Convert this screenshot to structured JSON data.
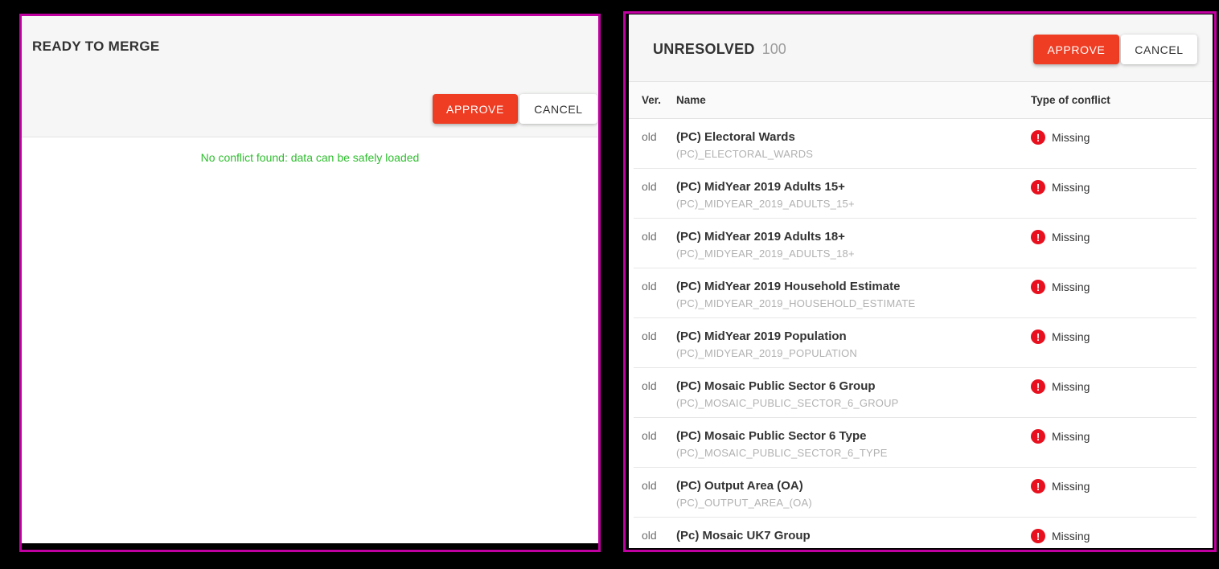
{
  "colors": {
    "annotation_border": "#c000a0",
    "approve_red": "#ee3d23",
    "error_red": "#e8101e",
    "success_green": "#2dbd2d"
  },
  "left_panel": {
    "title": "READY TO MERGE",
    "approve_label": "APPROVE",
    "cancel_label": "CANCEL",
    "message": "No conflict found: data can be safely loaded"
  },
  "right_panel": {
    "title": "UNRESOLVED",
    "count": "100",
    "approve_label": "APPROVE",
    "cancel_label": "CANCEL",
    "columns": {
      "ver": "Ver.",
      "name": "Name",
      "conflict": "Type of conflict"
    },
    "error_icon_glyph": "!",
    "rows": [
      {
        "ver": "old",
        "name": "(PC) Electoral Wards",
        "code": "(PC)_ELECTORAL_WARDS",
        "conflict": "Missing"
      },
      {
        "ver": "old",
        "name": "(PC) MidYear 2019 Adults 15+",
        "code": "(PC)_MIDYEAR_2019_ADULTS_15+",
        "conflict": "Missing"
      },
      {
        "ver": "old",
        "name": "(PC) MidYear 2019 Adults 18+",
        "code": "(PC)_MIDYEAR_2019_ADULTS_18+",
        "conflict": "Missing"
      },
      {
        "ver": "old",
        "name": "(PC) MidYear 2019 Household Estimate",
        "code": "(PC)_MIDYEAR_2019_HOUSEHOLD_ESTIMATE",
        "conflict": "Missing"
      },
      {
        "ver": "old",
        "name": "(PC) MidYear 2019 Population",
        "code": "(PC)_MIDYEAR_2019_POPULATION",
        "conflict": "Missing"
      },
      {
        "ver": "old",
        "name": "(PC) Mosaic Public Sector 6 Group",
        "code": "(PC)_MOSAIC_PUBLIC_SECTOR_6_GROUP",
        "conflict": "Missing"
      },
      {
        "ver": "old",
        "name": "(PC) Mosaic Public Sector 6 Type",
        "code": "(PC)_MOSAIC_PUBLIC_SECTOR_6_TYPE",
        "conflict": "Missing"
      },
      {
        "ver": "old",
        "name": "(PC) Output Area (OA)",
        "code": "(PC)_OUTPUT_AREA_(OA)",
        "conflict": "Missing"
      },
      {
        "ver": "old",
        "name": "(Pc) Mosaic UK7 Group",
        "code": "",
        "conflict": "Missing"
      }
    ]
  }
}
